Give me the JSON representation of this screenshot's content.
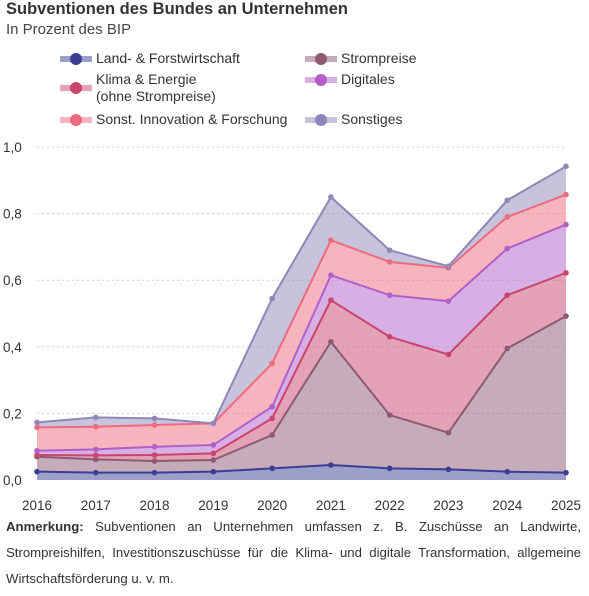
{
  "title": "Subventionen des Bundes an Unternehmen",
  "subtitle": "In Prozent des BIP",
  "note_label": "Anmerkung:",
  "note_text": "Subventionen an Unternehmen umfassen z. B. Zuschüsse an Landwirte, Strompreishilfen, Investitionszuschüsse für die Klima- und digitale Transformation, allgemeine Wirtschaftsförderung u. v. m.",
  "chart_data": {
    "type": "area",
    "stacked": true,
    "title": "Subventionen des Bundes an Unternehmen",
    "subtitle": "In Prozent des BIP",
    "xlabel": "",
    "ylabel": "",
    "x": [
      "2016",
      "2017",
      "2018",
      "2019",
      "2020",
      "2021",
      "2022",
      "2023",
      "2024",
      "2025"
    ],
    "ylim": [
      0,
      1.0
    ],
    "yticks": [
      "0,0",
      "0,2",
      "0,4",
      "0,6",
      "0,8",
      "1,0"
    ],
    "grid": "horizontal dashed",
    "legend_position": "top",
    "series": [
      {
        "name": "Land- & Forstwirtschaft",
        "color": "#3a3f94",
        "values": [
          0.025,
          0.022,
          0.022,
          0.025,
          0.035,
          0.045,
          0.035,
          0.032,
          0.025,
          0.022
        ]
      },
      {
        "name": "Strompreise",
        "color": "#8e5a72",
        "values": [
          0.045,
          0.04,
          0.035,
          0.035,
          0.1,
          0.37,
          0.16,
          0.11,
          0.37,
          0.47
        ]
      },
      {
        "name": "Klima & Energie (ohne Strompreise)",
        "color": "#c8456e",
        "values": [
          0.005,
          0.012,
          0.018,
          0.02,
          0.05,
          0.125,
          0.235,
          0.235,
          0.16,
          0.13
        ]
      },
      {
        "name": "Digitales",
        "color": "#b15fc9",
        "values": [
          0.013,
          0.018,
          0.025,
          0.025,
          0.035,
          0.075,
          0.125,
          0.16,
          0.14,
          0.145
        ]
      },
      {
        "name": "Sonst. Innovation & Forschung",
        "color": "#ee6a80",
        "values": [
          0.07,
          0.068,
          0.065,
          0.065,
          0.13,
          0.105,
          0.1,
          0.1,
          0.095,
          0.09
        ]
      },
      {
        "name": "Sonstiges",
        "color": "#8f87b8",
        "values": [
          0.015,
          0.028,
          0.02,
          0.0,
          0.195,
          0.13,
          0.035,
          0.005,
          0.05,
          0.085
        ]
      }
    ]
  },
  "legend": [
    {
      "label": "Land- & Forstwirtschaft",
      "color": "#3a3f94"
    },
    {
      "label": "Strompreise",
      "color": "#8e5a72"
    },
    {
      "label": "Klima & Energie\n (ohne Strompreise)",
      "color": "#c8456e"
    },
    {
      "label": "Digitales",
      "color": "#b15fc9"
    },
    {
      "label": "Sonst. Innovation & Forschung",
      "color": "#ee6a80"
    },
    {
      "label": "Sonstiges",
      "color": "#8f87b8"
    }
  ]
}
